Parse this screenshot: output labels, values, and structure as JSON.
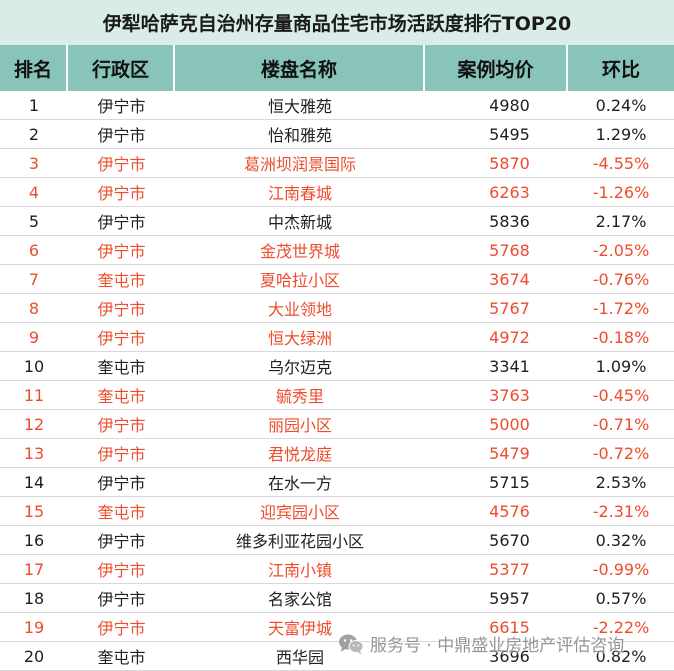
{
  "chart_data": {
    "type": "table",
    "title": "伊犁哈萨克自治州存量商品住宅市场活跃度排行TOP20",
    "columns": [
      "排名",
      "行政区",
      "楼盘名称",
      "案例均价",
      "环比"
    ],
    "rows": [
      {
        "rank": 1,
        "district": "伊宁市",
        "name": "恒大雅苑",
        "price": 4980,
        "change": "0.24%"
      },
      {
        "rank": 2,
        "district": "伊宁市",
        "name": "怡和雅苑",
        "price": 5495,
        "change": "1.29%"
      },
      {
        "rank": 3,
        "district": "伊宁市",
        "name": "葛洲坝润景国际",
        "price": 5870,
        "change": "-4.55%"
      },
      {
        "rank": 4,
        "district": "伊宁市",
        "name": "江南春城",
        "price": 6263,
        "change": "-1.26%"
      },
      {
        "rank": 5,
        "district": "伊宁市",
        "name": "中杰新城",
        "price": 5836,
        "change": "2.17%"
      },
      {
        "rank": 6,
        "district": "伊宁市",
        "name": "金茂世界城",
        "price": 5768,
        "change": "-2.05%"
      },
      {
        "rank": 7,
        "district": "奎屯市",
        "name": "夏哈拉小区",
        "price": 3674,
        "change": "-0.76%"
      },
      {
        "rank": 8,
        "district": "伊宁市",
        "name": "大业领地",
        "price": 5767,
        "change": "-1.72%"
      },
      {
        "rank": 9,
        "district": "伊宁市",
        "name": "恒大绿洲",
        "price": 4972,
        "change": "-0.18%"
      },
      {
        "rank": 10,
        "district": "奎屯市",
        "name": "乌尔迈克",
        "price": 3341,
        "change": "1.09%"
      },
      {
        "rank": 11,
        "district": "奎屯市",
        "name": "毓秀里",
        "price": 3763,
        "change": "-0.45%"
      },
      {
        "rank": 12,
        "district": "伊宁市",
        "name": "丽园小区",
        "price": 5000,
        "change": "-0.71%"
      },
      {
        "rank": 13,
        "district": "伊宁市",
        "name": "君悦龙庭",
        "price": 5479,
        "change": "-0.72%"
      },
      {
        "rank": 14,
        "district": "伊宁市",
        "name": "在水一方",
        "price": 5715,
        "change": "2.53%"
      },
      {
        "rank": 15,
        "district": "奎屯市",
        "name": "迎宾园小区",
        "price": 4576,
        "change": "-2.31%"
      },
      {
        "rank": 16,
        "district": "伊宁市",
        "name": "维多利亚花园小区",
        "price": 5670,
        "change": "0.32%"
      },
      {
        "rank": 17,
        "district": "伊宁市",
        "name": "江南小镇",
        "price": 5377,
        "change": "-0.99%"
      },
      {
        "rank": 18,
        "district": "伊宁市",
        "name": "名家公馆",
        "price": 5957,
        "change": "0.57%"
      },
      {
        "rank": 19,
        "district": "伊宁市",
        "name": "天富伊城",
        "price": 6615,
        "change": "-2.22%"
      },
      {
        "rank": 20,
        "district": "奎屯市",
        "name": "西华园",
        "price": 3696,
        "change": "0.82%"
      }
    ]
  },
  "watermark": {
    "icon": "wechat-icon",
    "text": "服务号 · 中鼎盛业房地产评估咨询"
  },
  "colors": {
    "title_bg": "#d9ece8",
    "header_bg": "#89c4ba",
    "text": "#1f1f1f",
    "negative": "#ee4c2c"
  }
}
